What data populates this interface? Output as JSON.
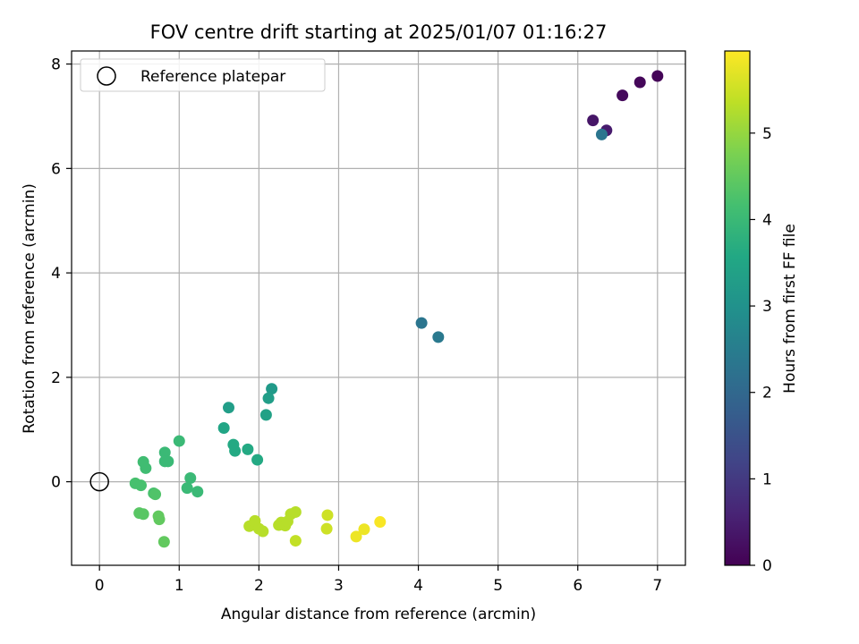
{
  "chart_data": {
    "type": "scatter",
    "title": "FOV centre drift starting at 2025/01/07 01:16:27",
    "xlabel": "Angular distance from reference (arcmin)",
    "ylabel": "Rotation from reference (arcmin)",
    "xlim": [
      -0.35,
      7.35
    ],
    "ylim": [
      -1.6,
      8.25
    ],
    "xticks": [
      0,
      1,
      2,
      3,
      4,
      5,
      6,
      7
    ],
    "yticks": [
      0,
      2,
      4,
      6,
      8
    ],
    "grid": true,
    "colormap": "viridis",
    "colorbar": {
      "label": "Hours from first FF file",
      "range": [
        0,
        5.95
      ],
      "ticks": [
        0,
        1,
        2,
        3,
        4,
        5
      ]
    },
    "legend": {
      "position": "top-left",
      "entries": [
        {
          "label": "Reference platepar",
          "marker": "open-circle",
          "color": "#000000"
        }
      ]
    },
    "reference_point": {
      "x": 0,
      "y": 0
    },
    "points": [
      {
        "x": 7.0,
        "y": 7.77,
        "c": 0.05
      },
      {
        "x": 6.78,
        "y": 7.65,
        "c": 0.1
      },
      {
        "x": 6.56,
        "y": 7.4,
        "c": 0.15
      },
      {
        "x": 6.19,
        "y": 6.92,
        "c": 0.35
      },
      {
        "x": 6.36,
        "y": 6.73,
        "c": 0.45
      },
      {
        "x": 6.3,
        "y": 6.65,
        "c": 2.3
      },
      {
        "x": 4.04,
        "y": 3.04,
        "c": 2.3
      },
      {
        "x": 4.25,
        "y": 2.77,
        "c": 2.4
      },
      {
        "x": 2.16,
        "y": 1.78,
        "c": 3.2
      },
      {
        "x": 2.12,
        "y": 1.6,
        "c": 3.3
      },
      {
        "x": 1.62,
        "y": 1.42,
        "c": 3.3
      },
      {
        "x": 2.09,
        "y": 1.28,
        "c": 3.4
      },
      {
        "x": 1.56,
        "y": 1.03,
        "c": 3.5
      },
      {
        "x": 1.68,
        "y": 0.71,
        "c": 3.6
      },
      {
        "x": 1.7,
        "y": 0.59,
        "c": 3.6
      },
      {
        "x": 1.86,
        "y": 0.62,
        "c": 3.6
      },
      {
        "x": 1.98,
        "y": 0.42,
        "c": 3.6
      },
      {
        "x": 1.0,
        "y": 0.78,
        "c": 4.0
      },
      {
        "x": 0.82,
        "y": 0.56,
        "c": 4.0
      },
      {
        "x": 0.86,
        "y": 0.39,
        "c": 4.0
      },
      {
        "x": 0.82,
        "y": 0.39,
        "c": 4.0
      },
      {
        "x": 1.14,
        "y": 0.07,
        "c": 4.0
      },
      {
        "x": 1.1,
        "y": -0.12,
        "c": 4.0
      },
      {
        "x": 1.23,
        "y": -0.19,
        "c": 4.0
      },
      {
        "x": 0.55,
        "y": 0.38,
        "c": 4.1
      },
      {
        "x": 0.58,
        "y": 0.26,
        "c": 4.1
      },
      {
        "x": 0.45,
        "y": -0.03,
        "c": 4.2
      },
      {
        "x": 0.52,
        "y": -0.07,
        "c": 4.2
      },
      {
        "x": 0.68,
        "y": -0.22,
        "c": 4.2
      },
      {
        "x": 0.7,
        "y": -0.24,
        "c": 4.3
      },
      {
        "x": 0.5,
        "y": -0.6,
        "c": 4.4
      },
      {
        "x": 0.55,
        "y": -0.62,
        "c": 4.4
      },
      {
        "x": 0.74,
        "y": -0.66,
        "c": 4.5
      },
      {
        "x": 0.75,
        "y": -0.72,
        "c": 4.5
      },
      {
        "x": 0.81,
        "y": -1.15,
        "c": 4.5
      },
      {
        "x": 1.88,
        "y": -0.85,
        "c": 5.3
      },
      {
        "x": 1.95,
        "y": -0.75,
        "c": 5.3
      },
      {
        "x": 2.0,
        "y": -0.9,
        "c": 5.3
      },
      {
        "x": 2.05,
        "y": -0.95,
        "c": 5.3
      },
      {
        "x": 2.25,
        "y": -0.83,
        "c": 5.3
      },
      {
        "x": 2.28,
        "y": -0.78,
        "c": 5.3
      },
      {
        "x": 2.33,
        "y": -0.84,
        "c": 5.3
      },
      {
        "x": 2.36,
        "y": -0.76,
        "c": 5.3
      },
      {
        "x": 2.4,
        "y": -0.62,
        "c": 5.3
      },
      {
        "x": 2.46,
        "y": -0.58,
        "c": 5.3
      },
      {
        "x": 2.46,
        "y": -1.13,
        "c": 5.4
      },
      {
        "x": 2.86,
        "y": -0.64,
        "c": 5.5
      },
      {
        "x": 2.85,
        "y": -0.9,
        "c": 5.5
      },
      {
        "x": 3.22,
        "y": -1.05,
        "c": 5.8
      },
      {
        "x": 3.32,
        "y": -0.91,
        "c": 5.8
      },
      {
        "x": 3.52,
        "y": -0.77,
        "c": 5.9
      }
    ]
  }
}
